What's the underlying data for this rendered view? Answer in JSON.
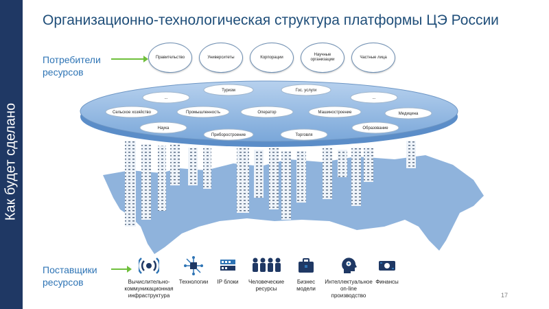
{
  "side_label": "Как будет сделано",
  "title": "Организационно-технологическая структура платформы ЦЭ России",
  "consumers_label": [
    "Потребители",
    "ресурсов"
  ],
  "suppliers_label": [
    "Поставщики",
    "ресурсов"
  ],
  "consumers": [
    "Правительство",
    "Университеты",
    "Корпорации",
    "Научные организации",
    "Частные лица"
  ],
  "platform_nodes": [
    "Туризм",
    "Гос. услуги",
    "...",
    "...",
    "Сельское хозяйство",
    "Промышленность",
    "Оператор",
    "Машиностроение",
    "Медицина",
    "Наука",
    "Приборостроение",
    "Торговля",
    "Образование"
  ],
  "suppliers": [
    {
      "name": "Вычислительно-\nкоммуникационная\nинфраструктура",
      "icon": "wireless-signal-icon"
    },
    {
      "name": "Технологии",
      "icon": "circuit-chip-icon"
    },
    {
      "name": "IP блоки",
      "icon": "server-rack-icon"
    },
    {
      "name": "Человеческие\nресурсы",
      "icon": "people-group-icon"
    },
    {
      "name": "Бизнес\nмодели",
      "icon": "briefcase-icon"
    },
    {
      "name": "Интеллектуальное\non-line\nпроизводство",
      "icon": "head-gears-icon"
    },
    {
      "name": "Финансы",
      "icon": "money-icon"
    }
  ],
  "page_number": "17",
  "colors": {
    "side_bar": "#1f3864",
    "title": "#1f4e79",
    "accent_arrow": "#6fbf3b",
    "platform": "#7aa7d9",
    "map": "#8fb3dc"
  }
}
